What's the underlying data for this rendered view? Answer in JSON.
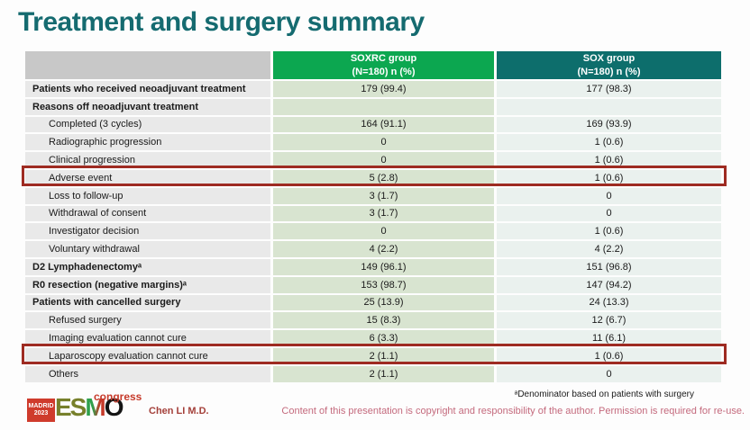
{
  "title": "Treatment and surgery summary",
  "table": {
    "header": {
      "soxrc_line1": "SOXRC group",
      "soxrc_line2": "(N=180)  n (%)",
      "sox_line1": "SOX group",
      "sox_line2": "(N=180)  n (%)"
    },
    "rows": [
      {
        "label": "Patients who received neoadjuvant treatment",
        "soxrc": "179 (99.4)",
        "sox": "177 (98.3)"
      },
      {
        "label": "Reasons off neoadjuvant treatment",
        "soxrc": "",
        "sox": ""
      },
      {
        "label": "Completed (3 cycles)",
        "soxrc": "164 (91.1)",
        "sox": "169 (93.9)"
      },
      {
        "label": "Radiographic progression",
        "soxrc": "0",
        "sox": "1 (0.6)"
      },
      {
        "label": "Clinical progression",
        "soxrc": "0",
        "sox": "1 (0.6)"
      },
      {
        "label": "Adverse event",
        "soxrc": "5 (2.8)",
        "sox": "1 (0.6)"
      },
      {
        "label": "Loss to follow-up",
        "soxrc": "3 (1.7)",
        "sox": "0"
      },
      {
        "label": "Withdrawal of consent",
        "soxrc": "3 (1.7)",
        "sox": "0"
      },
      {
        "label": "Investigator decision",
        "soxrc": "0",
        "sox": "1 (0.6)"
      },
      {
        "label": "Voluntary withdrawal",
        "soxrc": "4 (2.2)",
        "sox": "4 (2.2)"
      },
      {
        "label": "D2 Lymphadenectomyᵃ",
        "soxrc": "149 (96.1)",
        "sox": "151 (96.8)"
      },
      {
        "label": "R0 resection (negative margins)ᵃ",
        "soxrc": "153 (98.7)",
        "sox": "147 (94.2)"
      },
      {
        "label": "Patients with cancelled surgery",
        "soxrc": "25 (13.9)",
        "sox": "24 (13.3)"
      },
      {
        "label": "Refused surgery",
        "soxrc": "15 (8.3)",
        "sox": "12 (6.7)"
      },
      {
        "label": "Imaging evaluation cannot cure",
        "soxrc": "6 (3.3)",
        "sox": "11 (6.1)"
      },
      {
        "label": "Laparoscopy evaluation cannot cure",
        "soxrc": "2 (1.1)",
        "sox": "1 (0.6)"
      },
      {
        "label": "Others",
        "soxrc": "2 (1.1)",
        "sox": "0"
      }
    ]
  },
  "footer": {
    "footnote": "ᵃDenominator based on patients with surgery",
    "copyright": "Content of this presentation is copyright and responsibility of the author.  Permission is required for re-use.",
    "presenter": "Chen LI M.D.",
    "logo": {
      "city": "MADRID",
      "year": "2023",
      "es": "ES",
      "m": "M",
      "o": "O",
      "congress": "congress"
    }
  },
  "colors": {
    "title": "#156b70",
    "header_soxrc": "#0ca750",
    "header_sox": "#0d6e6c",
    "soxrc_cell": "#d8e4d0",
    "sox_cell": "#eaf1ee",
    "label_cell": "#e9e9e9",
    "highlight_border": "#9e2b22",
    "copyright_text": "#c46a7d"
  }
}
